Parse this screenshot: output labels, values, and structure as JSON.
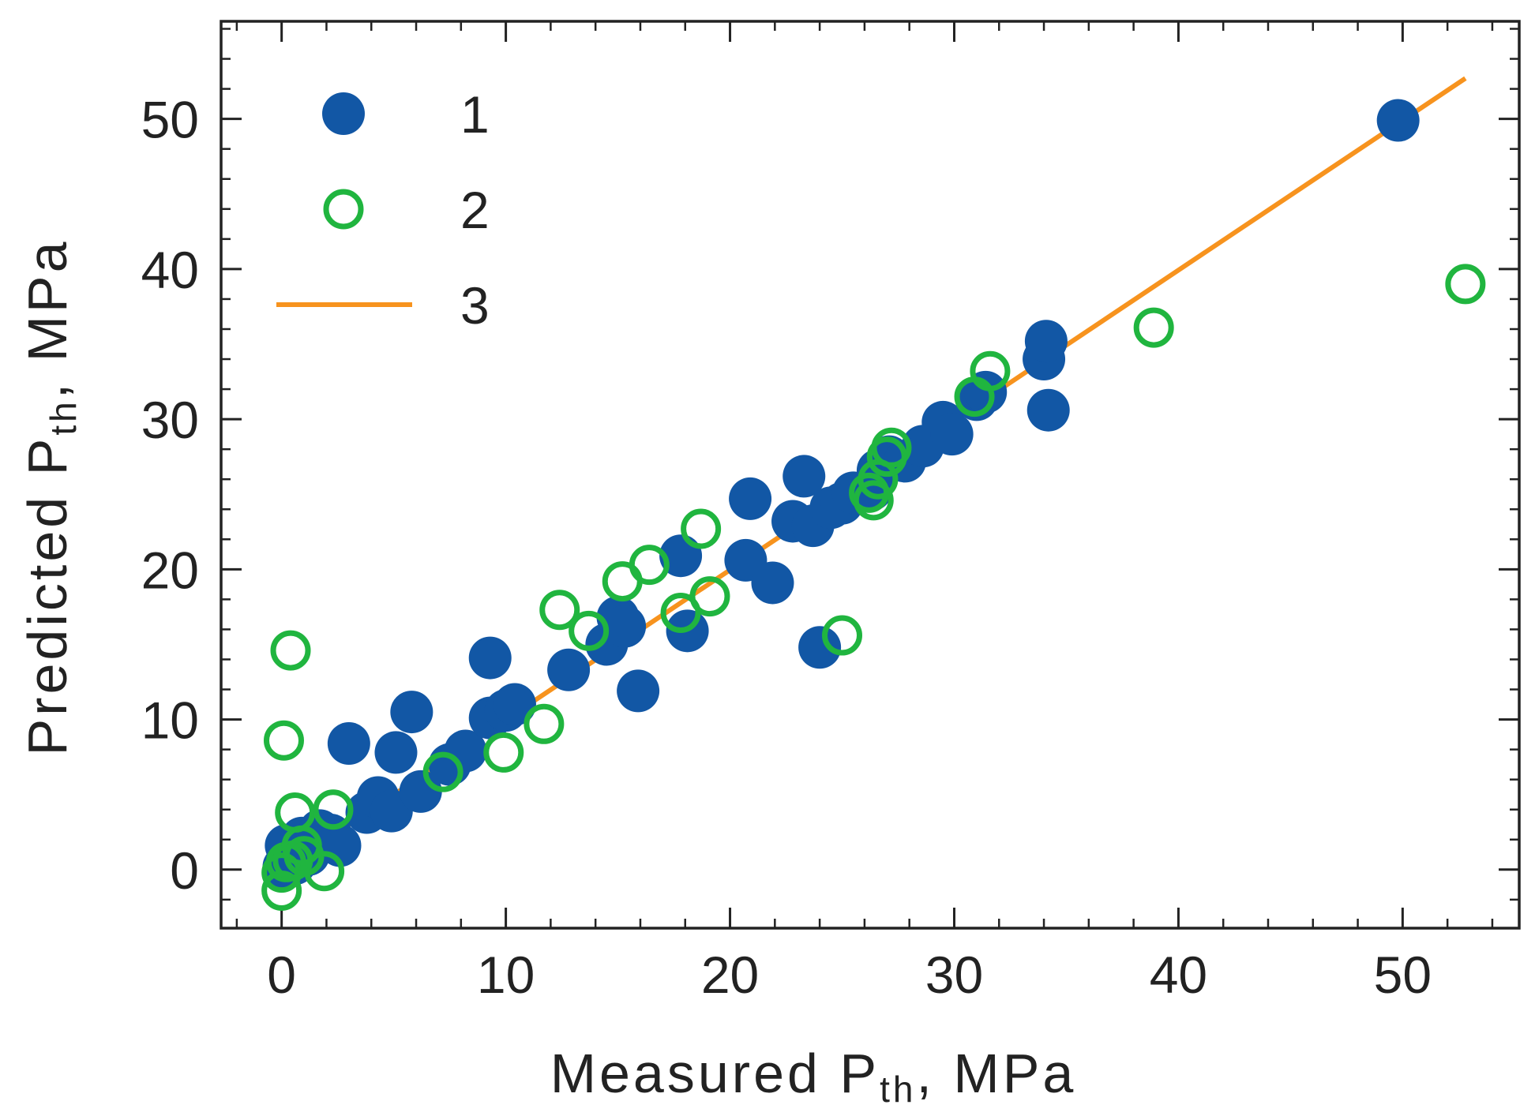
{
  "chart_data": {
    "type": "scatter",
    "title": "",
    "xlabel": {
      "main": "Measured P",
      "sub": "th",
      "tail": ", MPa"
    },
    "ylabel": {
      "main": "Predicted P",
      "sub": "th",
      "tail": ", MPa"
    },
    "xlim": [
      -2.7,
      55.2
    ],
    "ylim": [
      -3.9,
      56.5
    ],
    "x_ticks": [
      0,
      10,
      20,
      30,
      40,
      50
    ],
    "y_ticks": [
      0,
      10,
      20,
      30,
      40,
      50
    ],
    "x_tick_labels": [
      "0",
      "10",
      "20",
      "30",
      "40",
      "50"
    ],
    "y_tick_labels": [
      "0",
      "10",
      "20",
      "30",
      "40",
      "50"
    ],
    "grid": false,
    "legend_position": "top-left",
    "colors": {
      "series1": "#1257a5",
      "series2": "#20b53f",
      "fit": "#f7931e",
      "axis": "#222222"
    },
    "legend": [
      {
        "label": "1",
        "marker": "filled-circle"
      },
      {
        "label": "2",
        "marker": "open-circle"
      },
      {
        "label": "3",
        "marker": "line"
      }
    ],
    "series": [
      {
        "name": "1",
        "marker": "filled-circle",
        "points": [
          [
            0.1,
            0.2
          ],
          [
            0.3,
            1.0
          ],
          [
            0.2,
            1.6
          ],
          [
            0.6,
            0.4
          ],
          [
            0.9,
            2.1
          ],
          [
            1.2,
            1.0
          ],
          [
            1.7,
            2.6
          ],
          [
            2.2,
            2.3
          ],
          [
            2.6,
            1.6
          ],
          [
            3.0,
            8.4
          ],
          [
            3.8,
            3.8
          ],
          [
            4.3,
            4.8
          ],
          [
            4.9,
            3.9
          ],
          [
            5.1,
            7.8
          ],
          [
            5.8,
            10.5
          ],
          [
            6.2,
            5.2
          ],
          [
            7.5,
            7.0
          ],
          [
            8.2,
            7.9
          ],
          [
            9.3,
            10.1
          ],
          [
            9.3,
            14.1
          ],
          [
            10.0,
            10.6
          ],
          [
            10.4,
            11.0
          ],
          [
            12.8,
            13.3
          ],
          [
            14.5,
            15.0
          ],
          [
            15.0,
            16.8
          ],
          [
            15.3,
            16.2
          ],
          [
            15.9,
            11.9
          ],
          [
            17.8,
            20.9
          ],
          [
            18.1,
            15.9
          ],
          [
            20.7,
            20.6
          ],
          [
            20.9,
            24.7
          ],
          [
            21.9,
            19.1
          ],
          [
            22.8,
            23.2
          ],
          [
            23.3,
            26.2
          ],
          [
            23.7,
            22.9
          ],
          [
            24.0,
            14.8
          ],
          [
            24.5,
            24.1
          ],
          [
            25.0,
            24.4
          ],
          [
            25.5,
            25.1
          ],
          [
            26.3,
            25.3
          ],
          [
            26.6,
            26.6
          ],
          [
            27.1,
            27.5
          ],
          [
            27.8,
            27.2
          ],
          [
            28.6,
            28.2
          ],
          [
            29.5,
            29.8
          ],
          [
            29.9,
            29.0
          ],
          [
            31.0,
            31.3
          ],
          [
            31.4,
            31.8
          ],
          [
            34.0,
            34.0
          ],
          [
            34.1,
            35.2
          ],
          [
            34.2,
            30.6
          ],
          [
            49.8,
            49.9
          ]
        ]
      },
      {
        "name": "2",
        "marker": "open-circle",
        "points": [
          [
            0.0,
            -1.4
          ],
          [
            0.0,
            -0.2
          ],
          [
            0.1,
            8.6
          ],
          [
            0.2,
            0.5
          ],
          [
            0.4,
            14.6
          ],
          [
            0.5,
            0.6
          ],
          [
            0.6,
            3.8
          ],
          [
            0.9,
            1.6
          ],
          [
            1.0,
            0.9
          ],
          [
            1.9,
            -0.1
          ],
          [
            2.3,
            4.0
          ],
          [
            7.2,
            6.5
          ],
          [
            9.9,
            7.8
          ],
          [
            11.7,
            9.7
          ],
          [
            12.4,
            17.3
          ],
          [
            13.7,
            15.9
          ],
          [
            15.2,
            19.2
          ],
          [
            16.4,
            20.3
          ],
          [
            17.8,
            17.1
          ],
          [
            18.7,
            22.7
          ],
          [
            19.1,
            18.2
          ],
          [
            25.0,
            15.6
          ],
          [
            26.2,
            25.1
          ],
          [
            26.4,
            24.6
          ],
          [
            26.6,
            26.0
          ],
          [
            27.0,
            27.5
          ],
          [
            27.2,
            28.1
          ],
          [
            30.9,
            31.5
          ],
          [
            31.6,
            33.2
          ],
          [
            38.9,
            36.1
          ],
          [
            52.8,
            39.0
          ]
        ]
      }
    ],
    "fit_line": {
      "name": "3",
      "x": [
        0.0,
        52.8
      ],
      "y": [
        0.0,
        52.7
      ]
    }
  }
}
